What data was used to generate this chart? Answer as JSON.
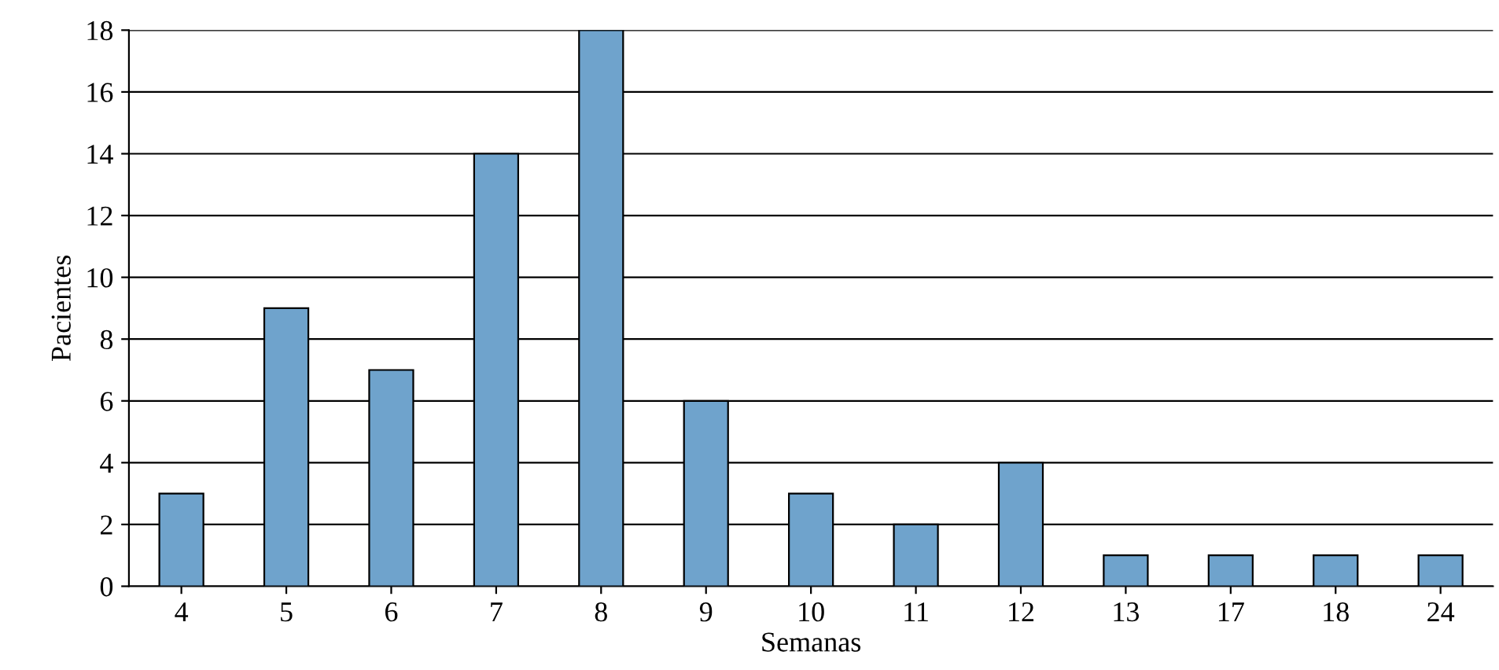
{
  "chart_data": {
    "type": "bar",
    "xlabel": "Semanas",
    "ylabel": "Pacientes",
    "categories": [
      "4",
      "5",
      "6",
      "7",
      "8",
      "9",
      "10",
      "11",
      "12",
      "13",
      "17",
      "18",
      "24"
    ],
    "values": [
      3,
      9,
      7,
      14,
      18,
      6,
      3,
      2,
      4,
      1,
      1,
      1,
      1
    ],
    "color": "#6fa3cc",
    "ylim": [
      0,
      18
    ],
    "yticks": [
      0,
      2,
      4,
      6,
      8,
      10,
      12,
      14,
      16,
      18
    ],
    "grid": "y",
    "legend": false
  }
}
